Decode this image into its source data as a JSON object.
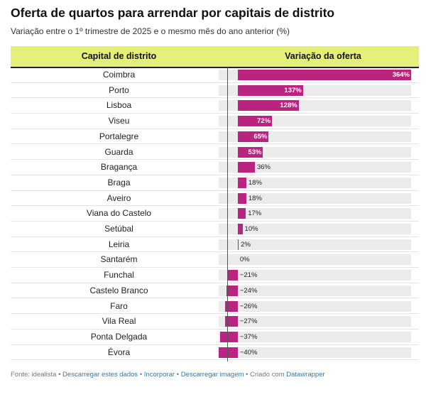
{
  "title": "Oferta de quartos para arrendar por capitais de distrito",
  "subtitle": "Variação entre o 1º trimestre de 2025 e o mesmo mês do ano anterior (%)",
  "header": {
    "col_name": "Capital de distrito",
    "col_value": "Variação da oferta"
  },
  "chart_data": {
    "type": "bar",
    "orientation": "horizontal",
    "title": "Oferta de quartos para arrendar por capitais de distrito",
    "subtitle": "Variação entre o 1º trimestre de 2025 e o mesmo mês do ano anterior (%)",
    "xlim": [
      -40,
      364
    ],
    "unit": "%",
    "categories": [
      "Coimbra",
      "Porto",
      "Lisboa",
      "Viseu",
      "Portalegre",
      "Guarda",
      "Bragança",
      "Braga",
      "Aveiro",
      "Viana do Castelo",
      "Setúbal",
      "Leiria",
      "Santarém",
      "Funchal",
      "Castelo Branco",
      "Faro",
      "Vila Real",
      "Ponta Delgada",
      "Évora"
    ],
    "values": [
      364,
      137,
      128,
      72,
      65,
      53,
      36,
      18,
      18,
      17,
      10,
      2,
      0,
      -21,
      -24,
      -26,
      -27,
      -37,
      -40
    ],
    "labels": [
      "364%",
      "137%",
      "128%",
      "72%",
      "65%",
      "53%",
      "36%",
      "18%",
      "18%",
      "17%",
      "10%",
      "2%",
      "0%",
      "−21%",
      "−24%",
      "−26%",
      "−27%",
      "−37%",
      "−40%"
    ],
    "bar_color": "#b8247f"
  },
  "footer": {
    "source": "Fonte: idealista",
    "sep": " • ",
    "link_data": "Descarregar estes dados",
    "link_embed": "Incorporar",
    "link_image": "Descarregar imagem",
    "created": "Criado com",
    "link_tool": "Datawrapper"
  }
}
